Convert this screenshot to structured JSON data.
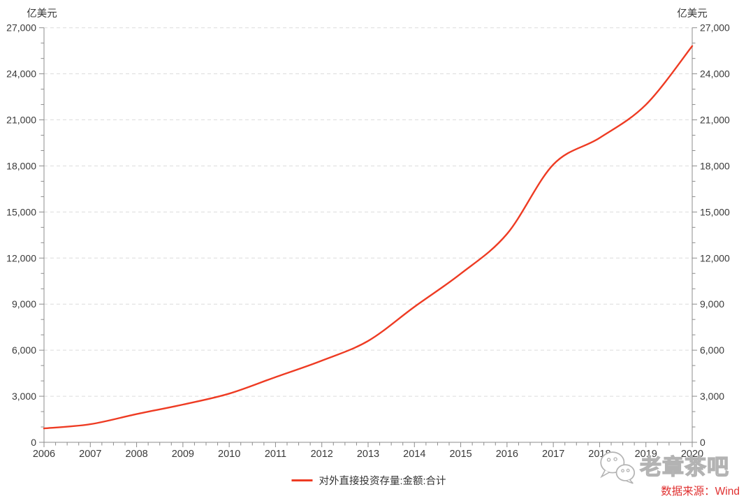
{
  "page": {
    "background": "#ffffff"
  },
  "chart_data": {
    "type": "line",
    "title": "",
    "x": [
      2006,
      2007,
      2008,
      2009,
      2010,
      2011,
      2012,
      2013,
      2014,
      2015,
      2016,
      2017,
      2018,
      2019,
      2020
    ],
    "x_tick_labels": [
      "2006",
      "2007",
      "2008",
      "2009",
      "2010",
      "2011",
      "2012",
      "2013",
      "2014",
      "2015",
      "2016",
      "2017",
      "2018",
      "2019",
      "2020"
    ],
    "series": [
      {
        "name": "对外直接投资存量:金额:合计",
        "color": "#ee3b23",
        "values": [
          906,
          1179,
          1840,
          2458,
          3172,
          4248,
          5319,
          6605,
          8826,
          10979,
          13574,
          18090,
          19823,
          21989,
          25807
        ]
      }
    ],
    "xlabel": "",
    "ylabel": "亿美元",
    "ylabel_right": "亿美元",
    "ylim": [
      0,
      27000
    ],
    "y_major_step": 3000,
    "y_minor_step": 1000,
    "x_minor_divisions_per_year": 4,
    "y_tick_labels": [
      "0",
      "3,000",
      "6,000",
      "9,000",
      "12,000",
      "15,000",
      "18,000",
      "21,000",
      "24,000",
      "27,000"
    ],
    "grid": "horizontal-dashed",
    "legend_position": "bottom-center",
    "smooth": true
  },
  "legend": {
    "label": "对外直接投资存量:金额:合计"
  },
  "source": {
    "label": "数据来源：Wind",
    "color": "#e03131"
  },
  "watermark": {
    "text": "老章茶吧",
    "icon": "wechat-chat-bubbles"
  },
  "colors": {
    "line": "#ee3b23",
    "grid": "#dcdcdc",
    "axis": "#8c8c8c",
    "tick_label": "#3a3a3a",
    "watermark": "#b3b3b3"
  }
}
